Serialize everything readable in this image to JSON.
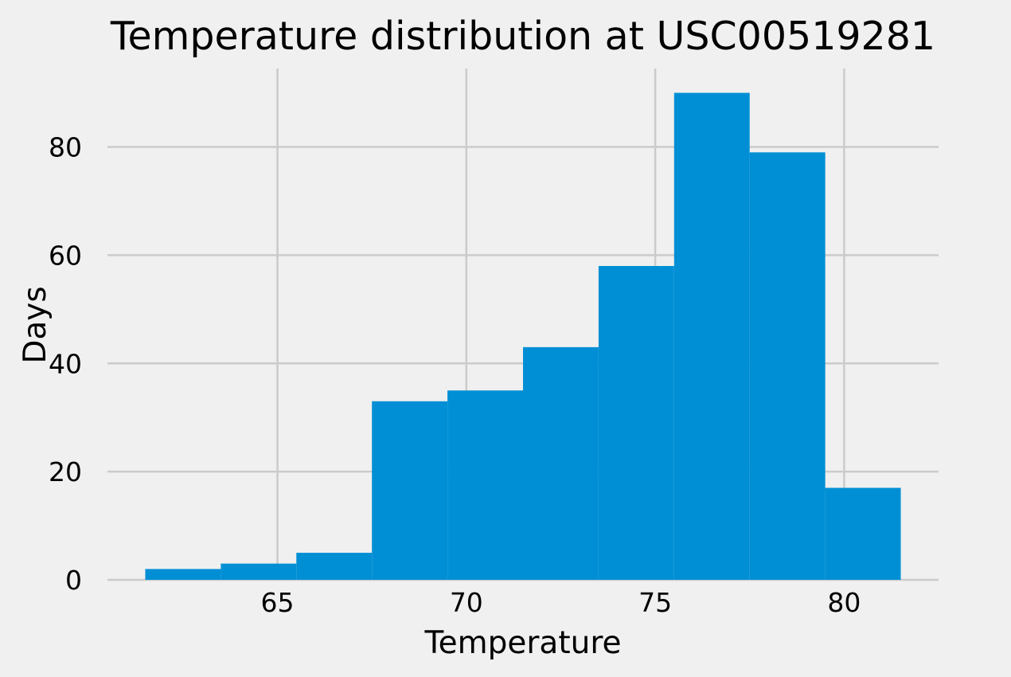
{
  "chart_data": {
    "type": "bar",
    "title": "Temperature distribution at USC00519281",
    "xlabel": "Temperature",
    "ylabel": "Days",
    "bins": [
      {
        "start": 61.5,
        "end": 63.5,
        "count": 2
      },
      {
        "start": 63.5,
        "end": 65.5,
        "count": 3
      },
      {
        "start": 65.5,
        "end": 67.5,
        "count": 5
      },
      {
        "start": 67.5,
        "end": 69.5,
        "count": 33
      },
      {
        "start": 69.5,
        "end": 71.5,
        "count": 35
      },
      {
        "start": 71.5,
        "end": 73.5,
        "count": 43
      },
      {
        "start": 73.5,
        "end": 75.5,
        "count": 58
      },
      {
        "start": 75.5,
        "end": 77.5,
        "count": 90
      },
      {
        "start": 77.5,
        "end": 79.5,
        "count": 79
      },
      {
        "start": 79.5,
        "end": 81.5,
        "count": 17
      }
    ],
    "xlim": [
      60.5,
      82.5
    ],
    "ylim": [
      0,
      94.5
    ],
    "xticks": [
      "65",
      "70",
      "75",
      "80"
    ],
    "yticks": [
      "0",
      "20",
      "40",
      "60",
      "80"
    ],
    "grid": true,
    "bar_color": "#008fd5",
    "background_color": "#f0f0f0"
  }
}
